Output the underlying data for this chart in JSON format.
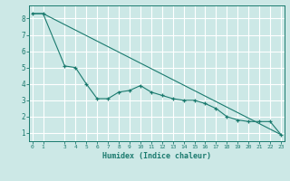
{
  "xlabel": "Humidex (Indice chaleur)",
  "ylabel": "",
  "bg_color": "#cce8e6",
  "grid_color": "#ffffff",
  "line_color": "#1a7a6e",
  "line1_x": [
    0,
    1,
    3,
    4,
    5,
    6,
    7,
    8,
    9,
    10,
    11,
    12,
    13,
    14,
    15,
    16,
    17,
    18,
    19,
    20,
    21,
    22,
    23
  ],
  "line1_y": [
    8.3,
    8.3,
    5.1,
    5.0,
    4.0,
    3.1,
    3.1,
    3.5,
    3.6,
    3.9,
    3.5,
    3.3,
    3.1,
    3.0,
    3.0,
    2.8,
    2.5,
    2.0,
    1.8,
    1.7,
    1.7,
    1.7,
    0.9
  ],
  "line2_x": [
    0,
    1,
    23
  ],
  "line2_y": [
    8.3,
    8.3,
    0.9
  ],
  "xticks": [
    0,
    1,
    3,
    4,
    5,
    6,
    7,
    8,
    9,
    10,
    11,
    12,
    13,
    14,
    15,
    16,
    17,
    18,
    19,
    20,
    21,
    22,
    23
  ],
  "yticks": [
    1,
    2,
    3,
    4,
    5,
    6,
    7,
    8
  ],
  "ylim": [
    0.5,
    8.8
  ],
  "xlim": [
    -0.3,
    23.3
  ]
}
